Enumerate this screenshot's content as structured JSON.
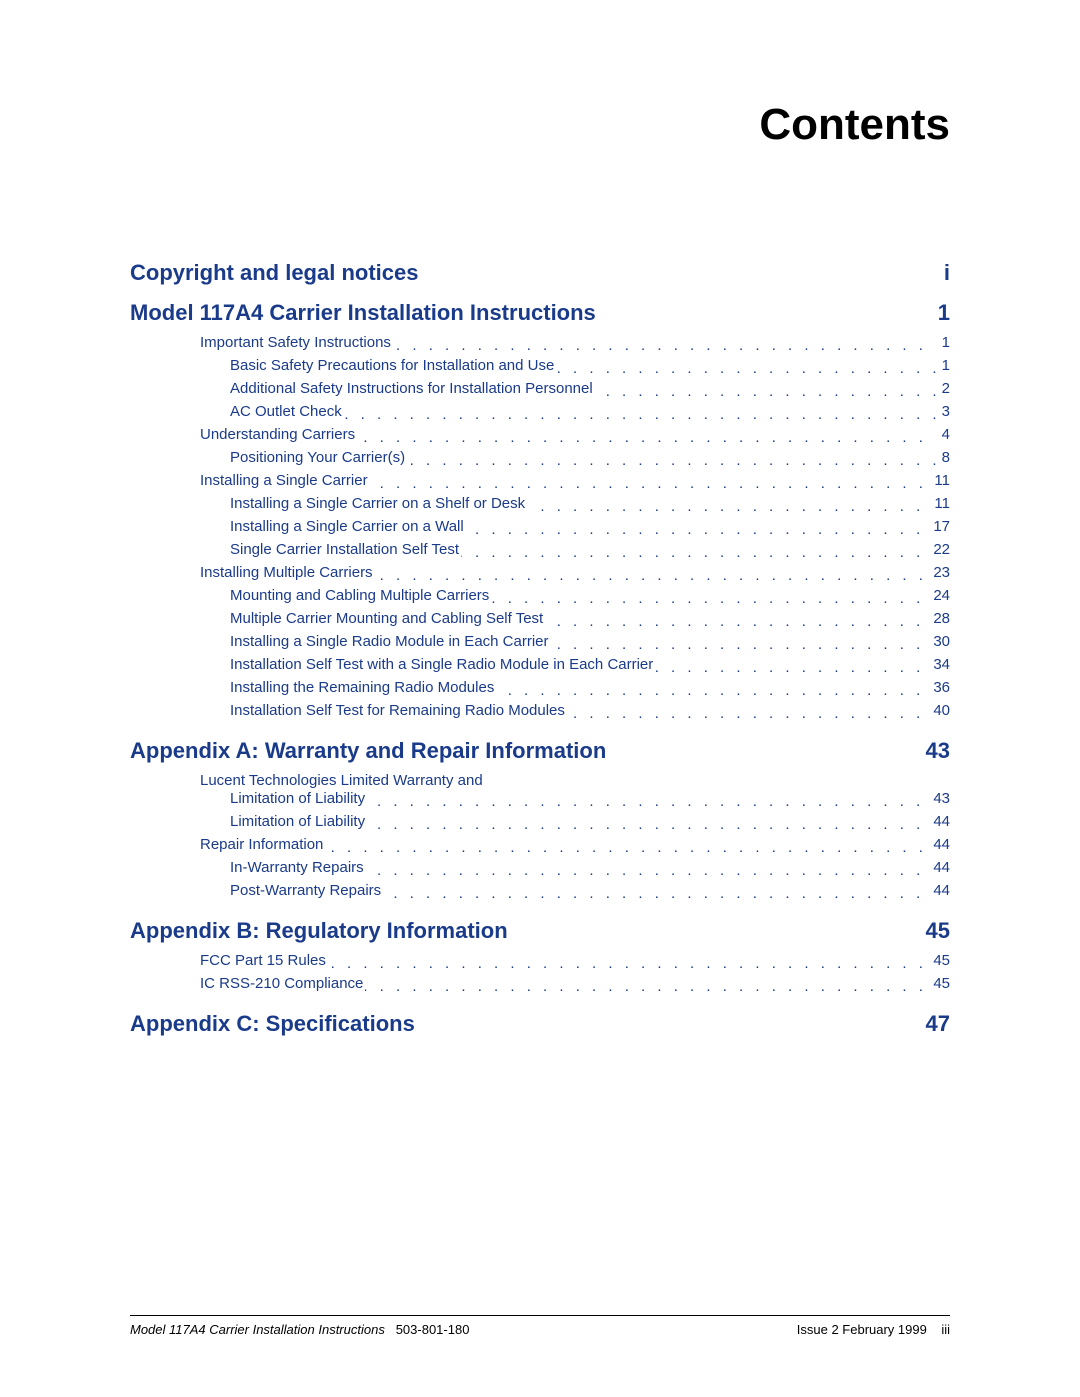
{
  "colors": {
    "heading": "#1a3a8a",
    "body": "#000000",
    "background": "#ffffff"
  },
  "page_title": "Contents",
  "sections": [
    {
      "title": "Copyright and legal notices",
      "page": "i",
      "entries": []
    },
    {
      "title": "Model 117A4 Carrier Installation Instructions",
      "page": "1",
      "entries": [
        {
          "level": 1,
          "title": "Important Safety Instructions",
          "page": "1"
        },
        {
          "level": 2,
          "title": "Basic Safety Precautions for Installation and Use",
          "page": "1"
        },
        {
          "level": 2,
          "title": "Additional Safety Instructions for Installation Personnel",
          "page": "2"
        },
        {
          "level": 2,
          "title": "AC Outlet Check",
          "page": "3"
        },
        {
          "level": 1,
          "title": "Understanding Carriers",
          "page": "4"
        },
        {
          "level": 2,
          "title": "Positioning Your Carrier(s)",
          "page": "8"
        },
        {
          "level": 1,
          "title": "Installing a Single Carrier",
          "page": "11"
        },
        {
          "level": 2,
          "title": "Installing a Single Carrier on a Shelf or Desk",
          "page": "11"
        },
        {
          "level": 2,
          "title": "Installing a Single Carrier on a Wall",
          "page": "17"
        },
        {
          "level": 2,
          "title": "Single Carrier Installation Self Test",
          "page": "22"
        },
        {
          "level": 1,
          "title": "Installing Multiple Carriers",
          "page": "23"
        },
        {
          "level": 2,
          "title": "Mounting and Cabling Multiple Carriers",
          "page": "24"
        },
        {
          "level": 2,
          "title": "Multiple Carrier Mounting and Cabling Self Test",
          "page": "28"
        },
        {
          "level": 2,
          "title": "Installing a Single Radio Module in Each Carrier",
          "page": "30"
        },
        {
          "level": 2,
          "title": "Installation Self Test with a Single Radio Module in Each Carrier",
          "page": "34"
        },
        {
          "level": 2,
          "title": "Installing the Remaining Radio Modules",
          "page": "36"
        },
        {
          "level": 2,
          "title": "Installation Self Test for Remaining Radio Modules",
          "page": "40"
        }
      ]
    },
    {
      "title": "Appendix A:  Warranty and Repair Information",
      "page": "43",
      "entries": [
        {
          "level": 1,
          "multiline_first": "Lucent Technologies Limited Warranty and",
          "title": "Limitation of Liability",
          "page": "43"
        },
        {
          "level": 2,
          "title": "Limitation of Liability",
          "page": "44"
        },
        {
          "level": 1,
          "title": "Repair Information",
          "page": "44"
        },
        {
          "level": 2,
          "title": "In-Warranty Repairs",
          "page": "44"
        },
        {
          "level": 2,
          "title": "Post-Warranty Repairs",
          "page": "44"
        }
      ]
    },
    {
      "title": "Appendix B:  Regulatory Information",
      "page": "45",
      "entries": [
        {
          "level": 1,
          "title": "FCC Part 15 Rules",
          "page": "45"
        },
        {
          "level": 1,
          "title": "IC RSS-210 Compliance",
          "page": "45"
        }
      ]
    },
    {
      "title": "Appendix C:  Specifications",
      "page": "47",
      "entries": []
    }
  ],
  "footer": {
    "doc_title": "Model 117A4 Carrier Installation Instructions",
    "doc_number": "503-801-180",
    "issue": "Issue 2  February 1999",
    "page_number": "iii"
  }
}
